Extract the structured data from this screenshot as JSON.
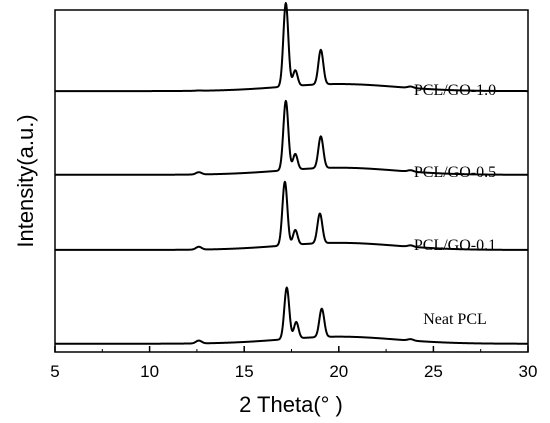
{
  "chart_data": {
    "type": "line",
    "title": "",
    "xlabel": "2 Theta(° )",
    "ylabel": "Intensity(a.u.)",
    "xlim": [
      5,
      30
    ],
    "x_ticks": [
      "5",
      "10",
      "15",
      "20",
      "25",
      "30"
    ],
    "grid": false,
    "legend": "none",
    "y_scale": "arbitrary units, vertically offset curves",
    "series": [
      {
        "name": "PCL/GO-1.0",
        "baseline": 0.88,
        "peaks": [
          {
            "x": 12.6,
            "height": 0.01,
            "width": 0.15
          },
          {
            "x": 17.2,
            "height": 2.95,
            "width": 0.13
          },
          {
            "x": 17.7,
            "height": 0.55,
            "width": 0.12
          },
          {
            "x": 19.05,
            "height": 1.22,
            "width": 0.13
          },
          {
            "x": 23.8,
            "height": 0.05,
            "width": 0.15
          }
        ]
      },
      {
        "name": "PCL/GO-0.5",
        "baseline": 0.82,
        "peaks": [
          {
            "x": 12.6,
            "height": 0.08,
            "width": 0.15
          },
          {
            "x": 17.2,
            "height": 2.45,
            "width": 0.13
          },
          {
            "x": 17.7,
            "height": 0.55,
            "width": 0.12
          },
          {
            "x": 19.05,
            "height": 1.12,
            "width": 0.13
          },
          {
            "x": 23.8,
            "height": 0.05,
            "width": 0.15
          }
        ]
      },
      {
        "name": "PCL/GO-0.1",
        "baseline": 0.78,
        "peaks": [
          {
            "x": 12.6,
            "height": 0.1,
            "width": 0.15
          },
          {
            "x": 17.15,
            "height": 2.25,
            "width": 0.13
          },
          {
            "x": 17.7,
            "height": 0.52,
            "width": 0.12
          },
          {
            "x": 19.0,
            "height": 1.05,
            "width": 0.13
          },
          {
            "x": 23.8,
            "height": 0.05,
            "width": 0.15
          }
        ]
      },
      {
        "name": "Neat PCL",
        "baseline": 0.08,
        "peaks": [
          {
            "x": 12.6,
            "height": 0.1,
            "width": 0.15
          },
          {
            "x": 17.25,
            "height": 1.82,
            "width": 0.13
          },
          {
            "x": 17.75,
            "height": 0.58,
            "width": 0.12
          },
          {
            "x": 19.1,
            "height": 1.0,
            "width": 0.13
          },
          {
            "x": 23.8,
            "height": 0.05,
            "width": 0.15
          }
        ]
      }
    ]
  }
}
